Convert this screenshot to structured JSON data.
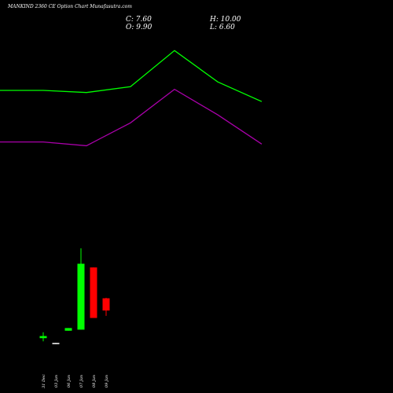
{
  "header": {
    "title": "MANKIND 2360 CE Option Chart Munafasutra.com",
    "close": "C: 7.60",
    "high": "H: 10.00",
    "open": "O: 9.90",
    "low": "L: 6.60"
  },
  "chart_data": {
    "type": "candlestick",
    "title": "MANKIND 2360 CE Option Chart Munafasutra.com",
    "categories": [
      "31 Dec",
      "03 Jan",
      "06 Jan",
      "07 Jan",
      "08 Jan",
      "09 Jan"
    ],
    "candles": [
      {
        "date": "31 Dec",
        "open": 2.4,
        "close": 2.8,
        "high": 3.5,
        "low": 1.8,
        "color": "#00ff00"
      },
      {
        "date": "03 Jan",
        "open": 1.3,
        "close": 1.5,
        "high": 1.5,
        "low": 1.3,
        "color": "#ffffff"
      },
      {
        "date": "06 Jan",
        "open": 3.8,
        "close": 4.3,
        "high": 4.3,
        "low": 3.8,
        "color": "#00ff00"
      },
      {
        "date": "07 Jan",
        "open": 4.0,
        "close": 16.4,
        "high": 19.3,
        "low": 4.0,
        "color": "#00ff00"
      },
      {
        "date": "08 Jan",
        "open": 15.7,
        "close": 6.2,
        "high": 15.7,
        "low": 6.2,
        "color": "#ff0000"
      },
      {
        "date": "09 Jan",
        "open": 9.9,
        "close": 7.6,
        "high": 10.0,
        "low": 6.6,
        "color": "#ff0000"
      }
    ],
    "lines": [
      {
        "color": "#00ff00",
        "x": [
          "start",
          "31 Dec",
          "03 Jan",
          "06 Jan",
          "07 Jan",
          "08 Jan",
          "09 Jan"
        ],
        "values": [
          49.0,
          49.0,
          48.6,
          49.7,
          56.5,
          50.6,
          46.9
        ]
      },
      {
        "color": "#aa00aa",
        "x": [
          "start",
          "31 Dec",
          "03 Jan",
          "06 Jan",
          "07 Jan",
          "08 Jan",
          "09 Jan"
        ],
        "values": [
          39.3,
          39.3,
          38.6,
          42.9,
          49.2,
          44.4,
          38.9
        ]
      }
    ],
    "ylim": [
      -2,
      66
    ],
    "grid": false,
    "colors": {
      "background": "#000000",
      "up": "#00ff00",
      "down": "#ff0000",
      "flat": "#ffffff"
    }
  }
}
